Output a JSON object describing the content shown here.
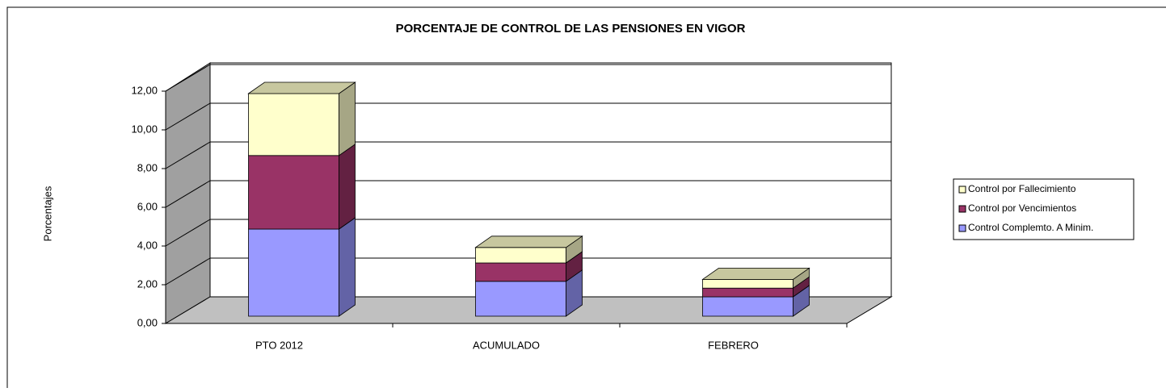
{
  "chart_data": {
    "type": "bar3d_stacked",
    "title": "PORCENTAJE DE CONTROL DE LAS PENSIONES EN VIGOR",
    "ylabel": "Porcentajes",
    "categories": [
      "PTO 2012",
      "ACUMULADO",
      "FEBRERO"
    ],
    "series": [
      {
        "name": "Control Complemto.  A Minim.",
        "color": "#9999ff",
        "values": [
          4.5,
          1.8,
          1.0
        ]
      },
      {
        "name": "Control por Vencimientos",
        "color": "#993366",
        "values": [
          3.8,
          0.95,
          0.45
        ]
      },
      {
        "name": "Control por Fallecimiento",
        "color": "#ffffcc",
        "values": [
          3.2,
          0.8,
          0.45
        ]
      }
    ],
    "ylim": [
      0,
      12
    ],
    "yticks": [
      {
        "value": 0,
        "label": "0,00"
      },
      {
        "value": 2,
        "label": "2,00"
      },
      {
        "value": 4,
        "label": "4,00"
      },
      {
        "value": 6,
        "label": "6,00"
      },
      {
        "value": 8,
        "label": "8,00"
      },
      {
        "value": 10,
        "label": "10,00"
      },
      {
        "value": 12,
        "label": "12,00"
      }
    ],
    "grid": true,
    "legend": "right"
  }
}
